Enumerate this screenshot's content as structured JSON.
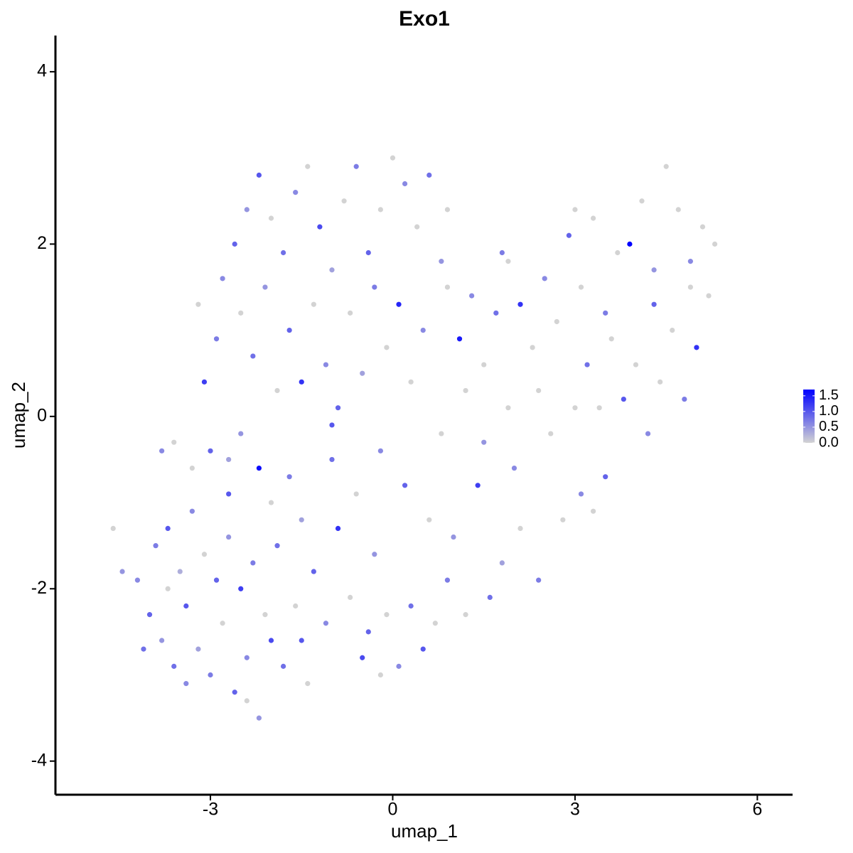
{
  "chart_data": {
    "type": "scatter",
    "title": "Exo1",
    "x_label": "umap_1",
    "y_label": "umap_2",
    "xlim": [
      -5.55,
      6.58
    ],
    "ylim": [
      -4.39,
      4.42
    ],
    "xticks": [
      -3,
      0,
      3,
      6
    ],
    "yticks": [
      -4,
      -2,
      0,
      2,
      4
    ],
    "x": [
      -4.2,
      -4.0,
      -3.8,
      -3.6,
      -3.4,
      -3.2,
      -3.0,
      -2.8,
      -2.6,
      -2.4,
      -2.2,
      -2.0,
      -1.8,
      -1.6,
      -3.9,
      -3.7,
      -3.5,
      -3.3,
      -3.1,
      -2.9,
      -2.7,
      -2.5,
      -2.3,
      -2.1,
      -1.9,
      -4.6,
      -4.45,
      -2.7,
      -3.0,
      -3.3,
      -3.6,
      -3.8,
      -2.2,
      -2.5,
      -2.0,
      -1.7,
      -1.5,
      -1.3,
      -1.1,
      -0.9,
      -0.7,
      -0.5,
      -0.3,
      -0.1,
      0.1,
      0.3,
      0.5,
      0.7,
      0.9,
      -1.4,
      -0.2,
      -1.0,
      -0.6,
      -0.2,
      0.2,
      0.6,
      1.0,
      1.4,
      1.8,
      2.1,
      2.4,
      2.8,
      3.1,
      3.3,
      3.5,
      1.6,
      1.2,
      2.0,
      2.6,
      3.0,
      -3.1,
      -2.9,
      -3.2,
      -2.8,
      -2.6,
      -2.4,
      -2.2,
      -2.0,
      -1.8,
      -1.6,
      -1.4,
      -1.2,
      -1.0,
      -0.8,
      -0.6,
      -0.4,
      -0.2,
      0.0,
      0.2,
      0.4,
      0.6,
      0.8,
      -2.5,
      -2.3,
      -2.1,
      -1.9,
      -1.7,
      -1.5,
      -1.3,
      -1.1,
      -0.9,
      -0.7,
      -0.5,
      -0.3,
      -0.1,
      0.1,
      0.3,
      0.5,
      -2.7,
      -1.0,
      0.9,
      1.1,
      1.3,
      1.5,
      1.7,
      1.9,
      2.1,
      2.3,
      2.5,
      2.7,
      2.9,
      3.1,
      3.3,
      3.5,
      3.7,
      3.9,
      4.1,
      4.3,
      4.5,
      4.7,
      4.9,
      5.1,
      5.3,
      5.0,
      4.8,
      4.6,
      4.4,
      4.2,
      4.0,
      3.8,
      3.6,
      3.4,
      3.2,
      2.4,
      1.9,
      1.5,
      1.2,
      0.8,
      5.2,
      4.9,
      4.3,
      3.0,
      1.8,
      0.9,
      -3.7,
      -4.1,
      -2.4,
      -3.4,
      -1.5,
      -0.4
    ],
    "y": [
      -1.9,
      -2.3,
      -2.6,
      -2.9,
      -2.2,
      -2.7,
      -3.0,
      -2.4,
      -3.2,
      -2.8,
      -3.5,
      -2.6,
      -2.9,
      -2.2,
      -1.5,
      -1.3,
      -1.8,
      -1.1,
      -1.6,
      -1.9,
      -1.4,
      -2.0,
      -1.7,
      -2.3,
      -1.5,
      -1.3,
      -1.8,
      -0.9,
      -0.4,
      -0.6,
      -0.3,
      -0.4,
      -0.6,
      -0.2,
      -1.0,
      -0.7,
      -1.2,
      -1.8,
      -2.4,
      -1.3,
      -2.1,
      -2.8,
      -1.6,
      -2.3,
      -2.9,
      -2.2,
      -2.7,
      -2.4,
      -1.9,
      -3.1,
      -3.0,
      -0.5,
      -0.9,
      -0.4,
      -0.8,
      -1.2,
      -1.4,
      -0.8,
      -1.7,
      -1.3,
      -1.9,
      -1.2,
      -0.9,
      -1.1,
      -0.7,
      -2.1,
      -2.3,
      -0.6,
      -0.2,
      0.1,
      0.4,
      0.9,
      1.3,
      1.6,
      2.0,
      2.4,
      2.8,
      2.3,
      1.9,
      2.6,
      2.9,
      2.2,
      1.7,
      2.5,
      2.9,
      1.9,
      2.4,
      3.0,
      2.7,
      2.2,
      2.8,
      1.8,
      1.2,
      0.7,
      1.5,
      0.3,
      1.0,
      0.4,
      1.3,
      0.6,
      0.1,
      1.2,
      0.5,
      1.5,
      0.8,
      1.3,
      0.4,
      1.0,
      -0.5,
      -0.1,
      1.5,
      0.9,
      1.4,
      0.6,
      1.2,
      1.8,
      1.3,
      0.8,
      1.6,
      1.1,
      2.1,
      1.5,
      2.3,
      1.2,
      1.9,
      2.0,
      2.5,
      1.7,
      2.9,
      2.4,
      1.8,
      2.2,
      2.0,
      0.8,
      0.2,
      1.0,
      0.4,
      -0.2,
      0.6,
      0.2,
      0.9,
      0.1,
      0.6,
      0.3,
      0.1,
      -0.3,
      0.3,
      -0.2,
      1.4,
      1.5,
      1.3,
      2.4,
      1.9,
      2.4,
      -2.0,
      -2.7,
      -3.3,
      -3.1,
      -2.6,
      -2.5
    ],
    "values": [
      0.6,
      0.9,
      0.5,
      0.8,
      1.0,
      0.4,
      0.7,
      0,
      0.9,
      0.6,
      0.5,
      1.1,
      0.8,
      0,
      0.7,
      1.0,
      0.3,
      0.6,
      0,
      0.9,
      0.5,
      1.2,
      0.7,
      0,
      0.8,
      0,
      0.5,
      1.0,
      0.9,
      0,
      0,
      0.6,
      1.6,
      0.5,
      0,
      0.7,
      0.4,
      0.9,
      0.6,
      1.3,
      0,
      1.1,
      0.5,
      0,
      0.6,
      0.8,
      1.0,
      0,
      0.7,
      0,
      0,
      0.8,
      0,
      0.6,
      0.9,
      0,
      0.5,
      1.2,
      0.4,
      0,
      0.7,
      0,
      0.6,
      0,
      0.9,
      0.8,
      0,
      0.6,
      0,
      0,
      1.2,
      0.7,
      0,
      0.6,
      0.9,
      0.5,
      1.0,
      0,
      0.8,
      0.6,
      0,
      1.1,
      0.4,
      0,
      0.7,
      0.9,
      0,
      0,
      0.6,
      0,
      0.8,
      0.5,
      0,
      0.8,
      0.5,
      0,
      0.9,
      1.3,
      0,
      0.6,
      0.9,
      0,
      0.4,
      0.7,
      0,
      1.4,
      0,
      0.6,
      0.4,
      1.0,
      0,
      1.5,
      0.6,
      0,
      0.8,
      0,
      1.3,
      0,
      0.6,
      0,
      0.9,
      0,
      0,
      0.7,
      0,
      1.7,
      0,
      0.5,
      0,
      0,
      0.6,
      0,
      0,
      1.3,
      0.7,
      0,
      0,
      0.6,
      0,
      1.0,
      0,
      0,
      0.8,
      0,
      0,
      0.5,
      0,
      0,
      0,
      0,
      0.9,
      0,
      0.7,
      0,
      0,
      0.8,
      0,
      0.6,
      1.0,
      0.9
    ],
    "colorbar": {
      "lim": [
        0,
        1.7
      ],
      "low_color": "#d3d3d3",
      "high_color": "#0000ff",
      "ticks": [
        {
          "value": 0,
          "label": "0.0"
        },
        0.5,
        {
          "value": 1,
          "label": "1.0"
        },
        1.5
      ]
    }
  }
}
